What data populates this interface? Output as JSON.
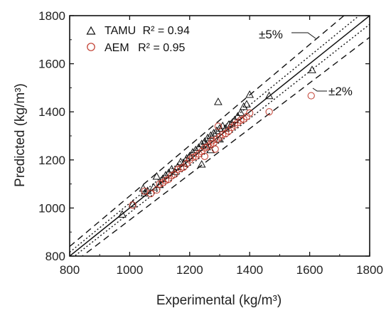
{
  "chart_data": {
    "type": "scatter",
    "xlabel": "Experimental (kg/m³)",
    "ylabel": "Predicted (kg/m³)",
    "xlim": [
      800,
      1800
    ],
    "ylim": [
      800,
      1800
    ],
    "xticks": [
      800,
      1000,
      1200,
      1400,
      1600,
      1800
    ],
    "yticks": [
      800,
      1000,
      1200,
      1400,
      1600,
      1800
    ],
    "legend_position": "top-left",
    "series": [
      {
        "name": "TAMU",
        "r2_label": "R² = 0.94",
        "marker": "triangle",
        "color": "#111111",
        "points": [
          [
            975,
            972
          ],
          [
            1010,
            1015
          ],
          [
            1045,
            1080
          ],
          [
            1050,
            1060
          ],
          [
            1060,
            1070
          ],
          [
            1080,
            1085
          ],
          [
            1090,
            1130
          ],
          [
            1100,
            1095
          ],
          [
            1110,
            1120
          ],
          [
            1120,
            1135
          ],
          [
            1130,
            1145
          ],
          [
            1140,
            1160
          ],
          [
            1150,
            1150
          ],
          [
            1160,
            1170
          ],
          [
            1170,
            1190
          ],
          [
            1180,
            1185
          ],
          [
            1190,
            1205
          ],
          [
            1200,
            1215
          ],
          [
            1210,
            1230
          ],
          [
            1220,
            1240
          ],
          [
            1230,
            1250
          ],
          [
            1240,
            1265
          ],
          [
            1250,
            1275
          ],
          [
            1255,
            1260
          ],
          [
            1260,
            1290
          ],
          [
            1270,
            1300
          ],
          [
            1280,
            1310
          ],
          [
            1290,
            1320
          ],
          [
            1295,
            1440
          ],
          [
            1300,
            1330
          ],
          [
            1310,
            1340
          ],
          [
            1320,
            1330
          ],
          [
            1330,
            1345
          ],
          [
            1340,
            1350
          ],
          [
            1350,
            1365
          ],
          [
            1360,
            1380
          ],
          [
            1370,
            1395
          ],
          [
            1380,
            1420
          ],
          [
            1390,
            1430
          ],
          [
            1400,
            1470
          ],
          [
            1465,
            1465
          ],
          [
            1608,
            1573
          ],
          [
            1240,
            1180
          ],
          [
            1270,
            1240
          ],
          [
            1300,
            1285
          ]
        ]
      },
      {
        "name": "AEM",
        "r2_label": "R² = 0.95",
        "marker": "circle",
        "color": "#c0392b",
        "points": [
          [
            1010,
            1012
          ],
          [
            1050,
            1070
          ],
          [
            1070,
            1060
          ],
          [
            1090,
            1075
          ],
          [
            1100,
            1100
          ],
          [
            1110,
            1105
          ],
          [
            1120,
            1115
          ],
          [
            1130,
            1120
          ],
          [
            1140,
            1135
          ],
          [
            1150,
            1140
          ],
          [
            1160,
            1160
          ],
          [
            1170,
            1165
          ],
          [
            1180,
            1170
          ],
          [
            1190,
            1185
          ],
          [
            1200,
            1200
          ],
          [
            1210,
            1210
          ],
          [
            1220,
            1215
          ],
          [
            1230,
            1225
          ],
          [
            1240,
            1235
          ],
          [
            1250,
            1250
          ],
          [
            1260,
            1255
          ],
          [
            1270,
            1265
          ],
          [
            1275,
            1280
          ],
          [
            1280,
            1270
          ],
          [
            1290,
            1285
          ],
          [
            1295,
            1340
          ],
          [
            1300,
            1295
          ],
          [
            1310,
            1305
          ],
          [
            1320,
            1310
          ],
          [
            1330,
            1320
          ],
          [
            1340,
            1335
          ],
          [
            1350,
            1345
          ],
          [
            1360,
            1355
          ],
          [
            1370,
            1365
          ],
          [
            1380,
            1370
          ],
          [
            1390,
            1380
          ],
          [
            1400,
            1395
          ],
          [
            1465,
            1400
          ],
          [
            1605,
            1467
          ],
          [
            1250,
            1215
          ],
          [
            1285,
            1245
          ]
        ]
      }
    ],
    "reference_lines": [
      {
        "factor": 1.0,
        "style": "solid"
      },
      {
        "factor": 1.02,
        "style": "dotted"
      },
      {
        "factor": 0.98,
        "style": "dotted"
      },
      {
        "factor": 1.05,
        "style": "dashed"
      },
      {
        "factor": 0.95,
        "style": "dashed"
      }
    ],
    "annotations": {
      "band5": "±5%",
      "band2": "±2%"
    }
  }
}
